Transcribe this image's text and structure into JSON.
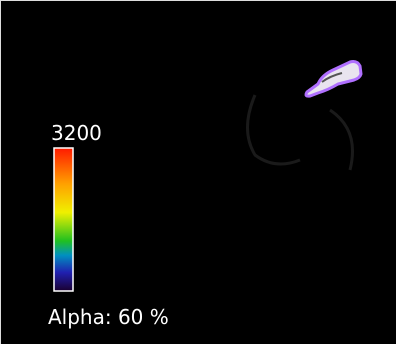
{
  "colorbar": {
    "max_label": "3200"
  },
  "alpha_label": "Alpha: 60 %"
}
